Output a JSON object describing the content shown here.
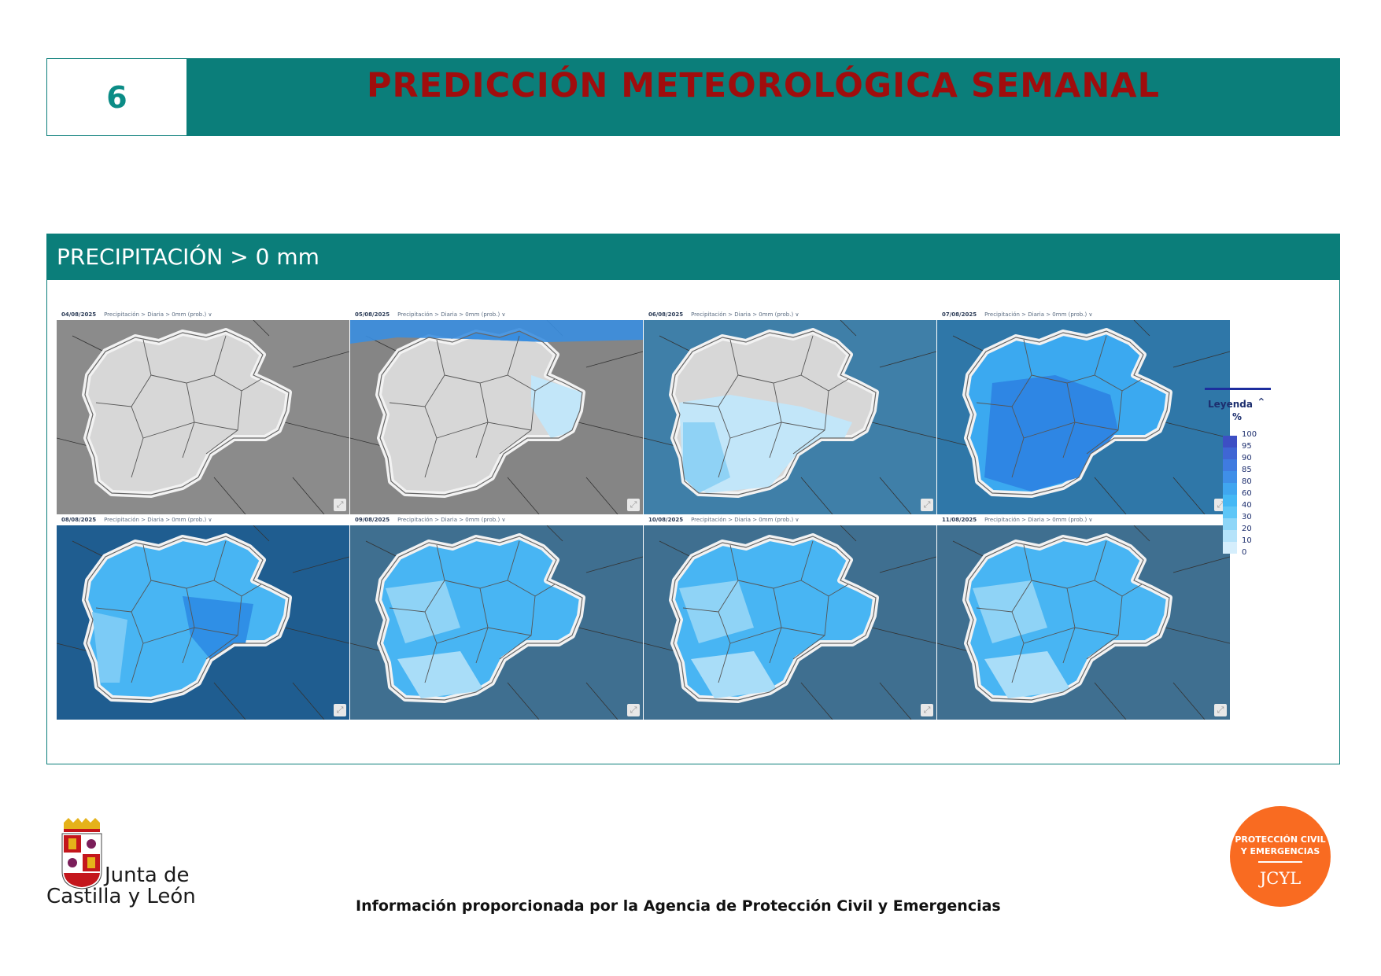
{
  "header": {
    "number": "6",
    "title": "PREDICCIÓN METEOROLÓGICA SEMANAL"
  },
  "panel": {
    "title": "PRECIPITACIÓN > 0 mm",
    "maps": [
      {
        "date": "04/08/2025",
        "caption": "Precipitación > Diaria > 0mm (prob.)",
        "scheme": "dry"
      },
      {
        "date": "05/08/2025",
        "caption": "Precipitación > Diaria > 0mm (prob.)",
        "scheme": "dry-north"
      },
      {
        "date": "06/08/2025",
        "caption": "Precipitación > Diaria > 0mm (prob.)",
        "scheme": "south"
      },
      {
        "date": "07/08/2025",
        "caption": "Precipitación > Diaria > 0mm (prob.)",
        "scheme": "wet-high"
      },
      {
        "date": "08/08/2025",
        "caption": "Precipitación > Diaria > 0mm (prob.)",
        "scheme": "wet"
      },
      {
        "date": "09/08/2025",
        "caption": "Precipitación > Diaria > 0mm (prob.)",
        "scheme": "wet-light"
      },
      {
        "date": "10/08/2025",
        "caption": "Precipitación > Diaria > 0mm (prob.)",
        "scheme": "wet-light"
      },
      {
        "date": "11/08/2025",
        "caption": "Precipitación > Diaria > 0mm (prob.)",
        "scheme": "wet-light"
      }
    ]
  },
  "legend": {
    "title": "Leyenda",
    "unit": "%",
    "labels": [
      "100",
      "95",
      "90",
      "85",
      "80",
      "60",
      "40",
      "30",
      "20",
      "10",
      "0"
    ],
    "colors": [
      "#3d4fc4",
      "#3f66d4",
      "#3f7be0",
      "#3f8fe8",
      "#40a6f0",
      "#45b8f5",
      "#5ec6f7",
      "#8ed6f8",
      "#b5e3fa",
      "#d5eefc"
    ]
  },
  "logos": {
    "jcyl_line1": "Junta de",
    "jcyl_line2": "Castilla y León",
    "pc_line1": "PROTECCIÓN CIVIL",
    "pc_line2": "Y EMERGENCIAS",
    "pc_line3": "JCYL"
  },
  "footer": {
    "text": "Información proporcionada por la Agencia de Protección Civil y Emergencias"
  }
}
